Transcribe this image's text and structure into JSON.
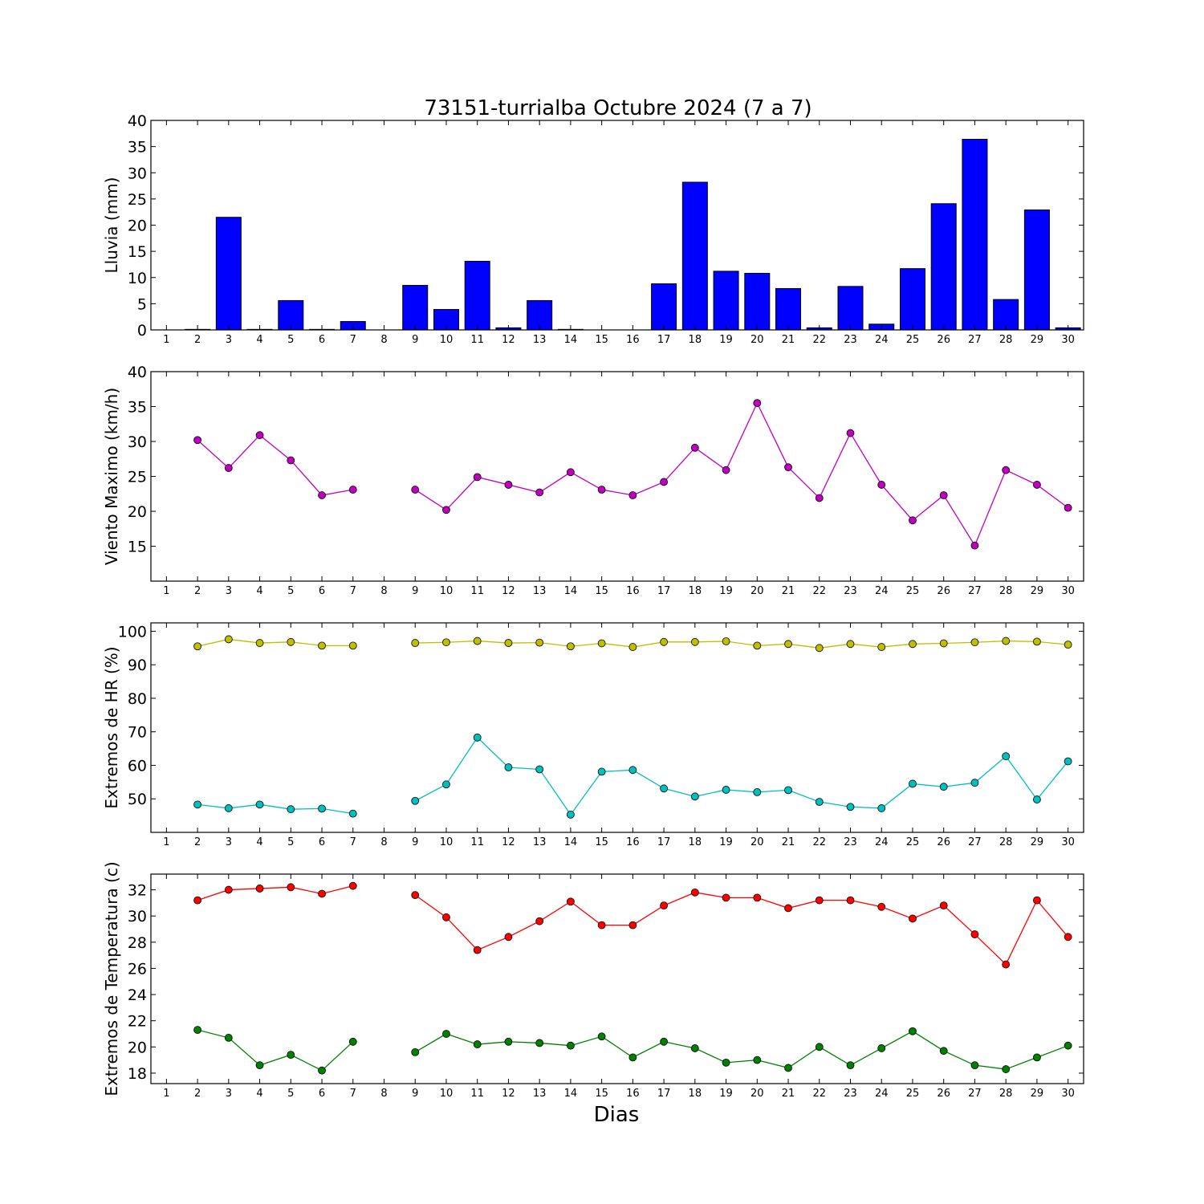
{
  "chart_data": {
    "title": "73151-turrialba Octubre 2024  (7 a 7)",
    "xlabel": "Dias",
    "days": [
      1,
      2,
      3,
      4,
      5,
      6,
      7,
      8,
      9,
      10,
      11,
      12,
      13,
      14,
      15,
      16,
      17,
      18,
      19,
      20,
      21,
      22,
      23,
      24,
      25,
      26,
      27,
      28,
      29,
      30
    ],
    "panels": [
      {
        "id": "lluvia",
        "type": "bar",
        "ylabel": "Lluvia (mm)",
        "ylim": [
          0,
          40
        ],
        "yticks": [
          0,
          5,
          10,
          15,
          20,
          25,
          30,
          35,
          40
        ],
        "series": [
          {
            "color": "#0000ff",
            "values": [
              0,
              0.1,
              21.5,
              0.1,
              5.6,
              0.1,
              1.6,
              0,
              8.5,
              3.9,
              13.1,
              0.4,
              5.6,
              0.1,
              0,
              0,
              8.8,
              28.2,
              11.2,
              10.8,
              7.9,
              0.4,
              8.3,
              1.1,
              11.7,
              24.1,
              36.4,
              5.8,
              22.9,
              0.4
            ]
          }
        ]
      },
      {
        "id": "viento",
        "type": "line",
        "ylabel": "Viento Maximo (km/h)",
        "ylim": [
          10,
          40
        ],
        "yticks": [
          15,
          20,
          25,
          30,
          35,
          40
        ],
        "series": [
          {
            "color": "#bf00bf",
            "values": [
              null,
              30.2,
              26.2,
              30.9,
              27.3,
              22.3,
              23.1,
              null,
              23.1,
              20.2,
              24.9,
              23.8,
              22.7,
              25.6,
              23.1,
              22.3,
              24.2,
              29.1,
              25.9,
              35.5,
              26.3,
              21.9,
              31.2,
              23.8,
              18.7,
              22.3,
              15.1,
              25.9,
              23.8,
              20.5
            ]
          }
        ]
      },
      {
        "id": "hr",
        "type": "line",
        "ylabel": "Extremos de HR (%)",
        "ylim": [
          40,
          102.5
        ],
        "yticks": [
          50,
          60,
          70,
          80,
          90,
          100
        ],
        "series": [
          {
            "color": "#bfbf00",
            "values": [
              null,
              95.5,
              97.6,
              96.5,
              96.8,
              95.7,
              95.7,
              null,
              96.5,
              96.7,
              97.1,
              96.5,
              96.6,
              95.5,
              96.4,
              95.3,
              96.8,
              96.8,
              97.0,
              95.7,
              96.2,
              95.0,
              96.2,
              95.3,
              96.2,
              96.4,
              96.7,
              97.1,
              96.9,
              96.0
            ]
          },
          {
            "color": "#00bfbf",
            "values": [
              null,
              48.3,
              47.2,
              48.3,
              46.9,
              47.1,
              45.6,
              null,
              49.4,
              54.3,
              68.3,
              59.4,
              58.8,
              45.3,
              58.1,
              58.6,
              53.1,
              50.7,
              52.7,
              52.0,
              52.6,
              49.1,
              47.6,
              47.2,
              54.5,
              53.6,
              54.8,
              62.7,
              49.8,
              61.2
            ]
          }
        ]
      },
      {
        "id": "temperatura",
        "type": "line",
        "ylabel": "Extremos de Temperatura (c)",
        "ylim": [
          17.2,
          33.2
        ],
        "yticks": [
          18,
          20,
          22,
          24,
          26,
          28,
          30,
          32
        ],
        "series": [
          {
            "color": "#ff0000",
            "values": [
              null,
              31.2,
              32.0,
              32.1,
              32.2,
              31.7,
              32.3,
              null,
              31.6,
              29.9,
              27.4,
              28.4,
              29.6,
              31.1,
              29.3,
              29.3,
              30.8,
              31.8,
              31.4,
              31.4,
              30.6,
              31.2,
              31.2,
              30.7,
              29.8,
              30.8,
              28.6,
              26.3,
              31.2,
              28.4
            ]
          },
          {
            "color": "#008000",
            "values": [
              null,
              21.3,
              20.7,
              18.6,
              19.4,
              18.2,
              20.4,
              null,
              19.6,
              21.0,
              20.2,
              20.4,
              20.3,
              20.1,
              20.8,
              19.2,
              20.4,
              19.9,
              18.8,
              19.0,
              18.4,
              20.0,
              18.6,
              19.9,
              21.2,
              19.7,
              18.6,
              18.3,
              19.2,
              20.1
            ]
          }
        ]
      }
    ]
  }
}
